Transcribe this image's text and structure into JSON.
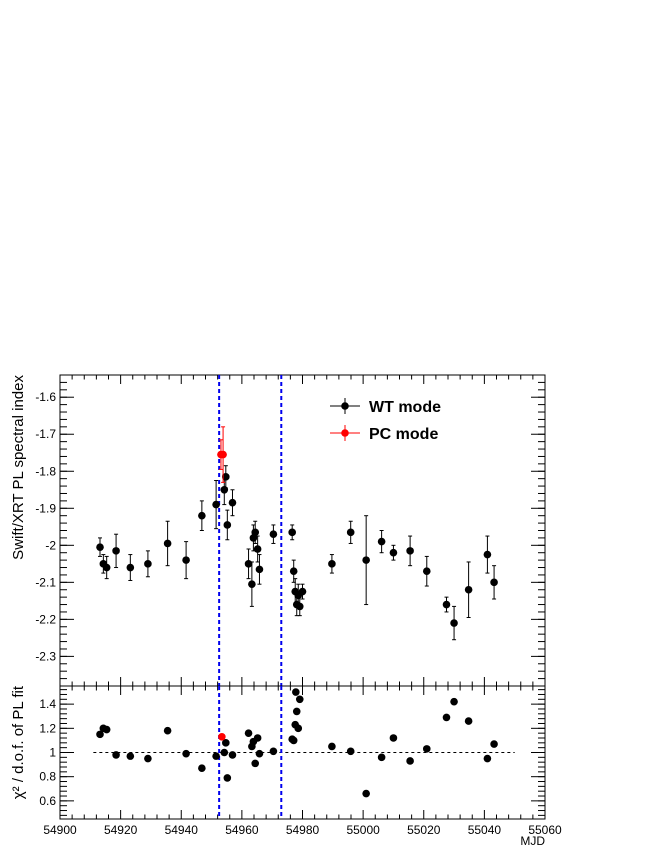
{
  "chart_data": [
    {
      "panel": "spectral-index",
      "type": "scatter",
      "ylabel": "Swift/XRT PL spectral index",
      "xlim": [
        54900,
        55060
      ],
      "ylim": [
        -2.38,
        -1.54
      ],
      "yticks": [
        -1.6,
        -1.7,
        -1.8,
        -1.9,
        -2,
        -2.1,
        -2.2,
        -2.3
      ],
      "yticklabels": [
        "-1.6",
        "-1.7",
        "-1.8",
        "-1.9",
        "-2",
        "-2.1",
        "-2.2",
        "-2.3"
      ],
      "vlines": [
        54952.5,
        54973
      ],
      "legend_position": "top-right",
      "series": [
        {
          "name": "WT mode",
          "color": "#000000",
          "points": [
            {
              "x": 54913.2,
              "y": -2.005,
              "err": 0.025
            },
            {
              "x": 54914.3,
              "y": -2.05,
              "err": 0.025
            },
            {
              "x": 54915.4,
              "y": -2.06,
              "err": 0.03
            },
            {
              "x": 54918.5,
              "y": -2.015,
              "err": 0.045
            },
            {
              "x": 54923.2,
              "y": -2.06,
              "err": 0.035
            },
            {
              "x": 54929.0,
              "y": -2.05,
              "err": 0.035
            },
            {
              "x": 54935.5,
              "y": -1.995,
              "err": 0.06
            },
            {
              "x": 54941.6,
              "y": -2.04,
              "err": 0.05
            },
            {
              "x": 54946.8,
              "y": -1.92,
              "err": 0.04
            },
            {
              "x": 54951.5,
              "y": -1.89,
              "err": 0.065
            },
            {
              "x": 54954.2,
              "y": -1.85,
              "err": 0.04
            },
            {
              "x": 54954.7,
              "y": -1.815,
              "err": 0.03
            },
            {
              "x": 54955.2,
              "y": -1.945,
              "err": 0.04
            },
            {
              "x": 54956.9,
              "y": -1.885,
              "err": 0.035
            },
            {
              "x": 54962.2,
              "y": -2.05,
              "err": 0.04
            },
            {
              "x": 54963.3,
              "y": -2.105,
              "err": 0.06
            },
            {
              "x": 54963.8,
              "y": -1.98,
              "err": 0.035
            },
            {
              "x": 54964.4,
              "y": -1.965,
              "err": 0.03
            },
            {
              "x": 54965.2,
              "y": -2.01,
              "err": 0.035
            },
            {
              "x": 54965.8,
              "y": -2.065,
              "err": 0.04
            },
            {
              "x": 54970.4,
              "y": -1.97,
              "err": 0.025
            },
            {
              "x": 54976.6,
              "y": -1.965,
              "err": 0.02
            },
            {
              "x": 54977.1,
              "y": -2.07,
              "err": 0.03
            },
            {
              "x": 54977.6,
              "y": -2.125,
              "err": 0.035
            },
            {
              "x": 54978.1,
              "y": -2.16,
              "err": 0.03
            },
            {
              "x": 54978.6,
              "y": -2.135,
              "err": 0.03
            },
            {
              "x": 54979.1,
              "y": -2.165,
              "err": 0.025
            },
            {
              "x": 54980.0,
              "y": -2.125,
              "err": 0.02
            },
            {
              "x": 54989.7,
              "y": -2.05,
              "err": 0.025
            },
            {
              "x": 54995.9,
              "y": -1.965,
              "err": 0.03
            },
            {
              "x": 55001.0,
              "y": -2.04,
              "err": 0.12
            },
            {
              "x": 55006.1,
              "y": -1.99,
              "err": 0.03
            },
            {
              "x": 55010.0,
              "y": -2.02,
              "err": 0.02
            },
            {
              "x": 55015.5,
              "y": -2.015,
              "err": 0.04
            },
            {
              "x": 55021.0,
              "y": -2.07,
              "err": 0.04
            },
            {
              "x": 55027.5,
              "y": -2.16,
              "err": 0.02
            },
            {
              "x": 55030.0,
              "y": -2.21,
              "err": 0.045
            },
            {
              "x": 55034.8,
              "y": -2.12,
              "err": 0.075
            },
            {
              "x": 55041.0,
              "y": -2.025,
              "err": 0.05
            },
            {
              "x": 55043.2,
              "y": -2.1,
              "err": 0.045
            }
          ]
        },
        {
          "name": "PC mode",
          "color": "#ff0000",
          "points": [
            {
              "x": 54953.1,
              "y": -1.755,
              "err": 0.04
            },
            {
              "x": 54953.8,
              "y": -1.755,
              "err": 0.075
            }
          ]
        }
      ]
    },
    {
      "panel": "chi2",
      "type": "scatter",
      "xlabel": "MJD",
      "ylabel": "χ² / d.o.f. of PL fit",
      "xlim": [
        54900,
        55060
      ],
      "ylim": [
        0.45,
        1.55
      ],
      "xticks": [
        54900,
        54920,
        54940,
        54960,
        54980,
        55000,
        55020,
        55040,
        55060
      ],
      "xticklabels": [
        "54900",
        "54920",
        "54940",
        "54960",
        "54980",
        "55000",
        "55020",
        "55040",
        "55060"
      ],
      "yticks": [
        0.6,
        0.8,
        1,
        1.2,
        1.4
      ],
      "yticklabels": [
        "0.6",
        "0.8",
        "1",
        "1.2",
        "1.4"
      ],
      "reference_line": {
        "y": 1.0,
        "x_from": 54911,
        "x_to": 55050
      },
      "vlines": [
        54952.5,
        54973
      ],
      "series": [
        {
          "name": "WT mode",
          "color": "#000000",
          "points": [
            {
              "x": 54913.2,
              "y": 1.15
            },
            {
              "x": 54914.3,
              "y": 1.2
            },
            {
              "x": 54915.4,
              "y": 1.19
            },
            {
              "x": 54918.5,
              "y": 0.98
            },
            {
              "x": 54923.2,
              "y": 0.97
            },
            {
              "x": 54929.0,
              "y": 0.95
            },
            {
              "x": 54935.5,
              "y": 1.18
            },
            {
              "x": 54941.6,
              "y": 0.99
            },
            {
              "x": 54946.8,
              "y": 0.87
            },
            {
              "x": 54951.5,
              "y": 0.97
            },
            {
              "x": 54954.2,
              "y": 1.0
            },
            {
              "x": 54954.7,
              "y": 1.08
            },
            {
              "x": 54955.2,
              "y": 0.79
            },
            {
              "x": 54956.9,
              "y": 0.98
            },
            {
              "x": 54962.2,
              "y": 1.16
            },
            {
              "x": 54963.3,
              "y": 1.05
            },
            {
              "x": 54963.8,
              "y": 1.09
            },
            {
              "x": 54964.4,
              "y": 0.91
            },
            {
              "x": 54965.2,
              "y": 1.12
            },
            {
              "x": 54965.8,
              "y": 0.99
            },
            {
              "x": 54970.4,
              "y": 1.01
            },
            {
              "x": 54976.6,
              "y": 1.11
            },
            {
              "x": 54977.1,
              "y": 1.1
            },
            {
              "x": 54977.6,
              "y": 1.23
            },
            {
              "x": 54978.1,
              "y": 1.34
            },
            {
              "x": 54977.8,
              "y": 1.5
            },
            {
              "x": 54978.6,
              "y": 1.2
            },
            {
              "x": 54979.1,
              "y": 1.44
            },
            {
              "x": 54989.7,
              "y": 1.05
            },
            {
              "x": 54995.9,
              "y": 1.01
            },
            {
              "x": 55001.0,
              "y": 0.66
            },
            {
              "x": 55006.1,
              "y": 0.96
            },
            {
              "x": 55010.0,
              "y": 1.12
            },
            {
              "x": 55015.5,
              "y": 0.93
            },
            {
              "x": 55021.0,
              "y": 1.03
            },
            {
              "x": 55027.5,
              "y": 1.29
            },
            {
              "x": 55030.0,
              "y": 1.42
            },
            {
              "x": 55034.8,
              "y": 1.26
            },
            {
              "x": 55041.0,
              "y": 0.95
            },
            {
              "x": 55043.2,
              "y": 1.07
            }
          ]
        },
        {
          "name": "PC mode",
          "color": "#ff0000",
          "points": [
            {
              "x": 54953.4,
              "y": 1.13
            }
          ]
        }
      ]
    }
  ],
  "colors": {
    "vline": "#0000ee",
    "axis": "#000000"
  }
}
